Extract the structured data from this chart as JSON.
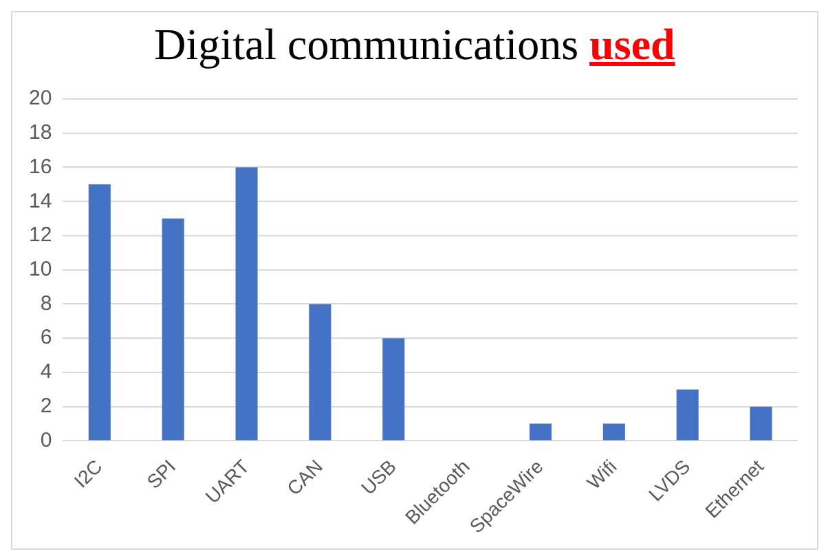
{
  "chart_data": {
    "type": "bar",
    "title": "Digital communications used",
    "categories": [
      "I2C",
      "SPI",
      "UART",
      "CAN",
      "USB",
      "Bluetooth",
      "SpaceWire",
      "Wifi",
      "LVDS",
      "Ethernet"
    ],
    "values": [
      15,
      13,
      16,
      8,
      6,
      0,
      1,
      1,
      3,
      2
    ],
    "color": "#4472c4",
    "ylim": [
      0,
      20
    ],
    "yticks": [
      0,
      2,
      4,
      6,
      8,
      10,
      12,
      14,
      16,
      18,
      20
    ],
    "grid": "y",
    "legend": false
  }
}
